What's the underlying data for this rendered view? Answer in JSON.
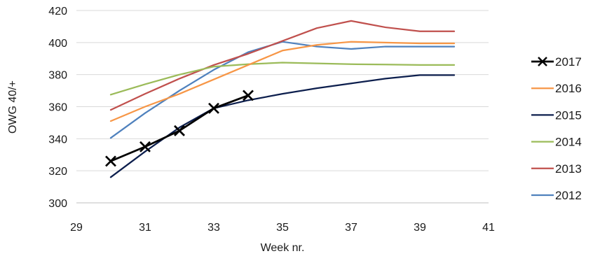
{
  "chart_data": {
    "type": "line",
    "title": "",
    "xlabel": "Week nr.",
    "ylabel": "OWG 40/+",
    "xlim": [
      29,
      41
    ],
    "ylim": [
      300,
      420
    ],
    "xticks": [
      29,
      31,
      33,
      35,
      37,
      39,
      41
    ],
    "yticks": [
      300,
      320,
      340,
      360,
      380,
      400,
      420
    ],
    "grid": "horizontal",
    "legend_position": "right",
    "series": [
      {
        "name": "2017",
        "color": "#000000",
        "marker": "x",
        "x": [
          30,
          31,
          32,
          33,
          34
        ],
        "y": [
          326,
          335,
          345,
          359,
          367
        ]
      },
      {
        "name": "2016",
        "color": "#f79646",
        "marker": "none",
        "x": [
          30,
          31,
          32,
          33,
          34,
          35,
          36,
          37,
          38,
          39,
          40
        ],
        "y": [
          351,
          360,
          368,
          377,
          386,
          395,
          398.5,
          400.5,
          400,
          399.5,
          399.5
        ]
      },
      {
        "name": "2015",
        "color": "#0c1e4d",
        "marker": "none",
        "x": [
          30,
          31,
          32,
          33,
          34,
          35,
          36,
          37,
          38,
          39,
          40
        ],
        "y": [
          316,
          332,
          347,
          359,
          364,
          368,
          371.5,
          374.5,
          377.5,
          379.7,
          379.7
        ]
      },
      {
        "name": "2014",
        "color": "#9bbb59",
        "marker": "none",
        "x": [
          30,
          31,
          32,
          33,
          34,
          35,
          36,
          37,
          38,
          39,
          40
        ],
        "y": [
          367.5,
          374,
          380,
          385,
          386.5,
          387.5,
          387,
          386.5,
          386.3,
          386,
          386
        ]
      },
      {
        "name": "2013",
        "color": "#c0504d",
        "marker": "none",
        "x": [
          30,
          31,
          32,
          33,
          34,
          35,
          36,
          37,
          38,
          39,
          40
        ],
        "y": [
          358,
          368,
          377.5,
          386,
          393,
          401,
          409,
          413.5,
          409.5,
          407,
          407
        ]
      },
      {
        "name": "2012",
        "color": "#4f81bd",
        "marker": "none",
        "x": [
          30,
          31,
          32,
          33,
          34,
          35,
          36,
          37,
          38,
          39,
          40
        ],
        "y": [
          340.5,
          356,
          370,
          383,
          394,
          400.5,
          397.5,
          396,
          397.5,
          397.5,
          397.5
        ]
      }
    ]
  }
}
